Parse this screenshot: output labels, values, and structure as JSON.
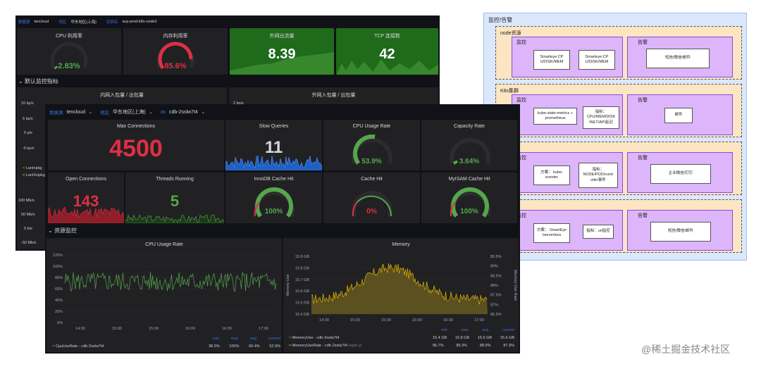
{
  "back_dash": {
    "vars": [
      {
        "label": "数据源",
        "value": "tencloud"
      },
      {
        "label": "地区",
        "value": "华东地区(上海)"
      },
      {
        "label": "实例名",
        "value": "acp-prod-k8s-node2"
      }
    ],
    "panels": {
      "cpu": {
        "title": "CPU 利用率",
        "value": "2.83%",
        "level": 0.0283
      },
      "mem": {
        "title": "内存利用率",
        "value": "85.6%",
        "level": 0.856
      },
      "net": {
        "title": "外网出流量",
        "value": "8.39"
      },
      "tcp": {
        "title": "TCP 连接数",
        "value": "42"
      }
    },
    "row_title": "默认监控指标",
    "inner_title": "内网入包量 / 出包量",
    "outer_title": "外网入包量 / 出包量",
    "y_labels": [
      "10 kp/s",
      "5 kp/s",
      "0 p/s",
      "-5 kp/s"
    ],
    "y_right": "2 kp/s",
    "legend": [
      "LanInpkg",
      "LanOutpkg"
    ],
    "y_labels2": [
      "100 Mb/s",
      "50 Mb/s",
      "0 b/s",
      "-50 Mb/s",
      "-50 Mb/s"
    ]
  },
  "front_dash": {
    "vars": [
      {
        "label": "数据源",
        "value": "tencloud"
      },
      {
        "label": "地区",
        "value": "华东地区(上海)"
      },
      {
        "label": "db",
        "value": "cdb-2sslw7t4"
      }
    ],
    "stats": {
      "max_conn": {
        "title": "Max Connections",
        "value": "4500"
      },
      "slow": {
        "title": "Slow Queries",
        "value": "11"
      },
      "cpu": {
        "title": "CPU Usage Rate",
        "value": "53.9%",
        "level": 0.539
      },
      "cap": {
        "title": "Capacity Rate",
        "value": "3.64%",
        "level": 0.0364
      },
      "open": {
        "title": "Open Connections",
        "value": "143"
      },
      "threads": {
        "title": "Threads Running",
        "value": "5"
      },
      "innodb": {
        "title": "InnoDB Cache Hit",
        "value": "100%",
        "level": 1
      },
      "cache": {
        "title": "Cache Hit",
        "value": "0%",
        "level": 0
      },
      "myisam": {
        "title": "MyISAM Cache Hit",
        "value": "100%",
        "level": 1
      }
    },
    "row_title": "资源监控",
    "cpu_chart": {
      "title": "CPU Usage Rate",
      "ylabels": [
        "120%",
        "100%",
        "80%",
        "60%",
        "40%",
        "20%",
        "0%"
      ],
      "xlabels": [
        "14:30",
        "15:00",
        "15:30",
        "16:00",
        "16:30",
        "17:00"
      ],
      "stat_headers": [
        "min",
        "max",
        "avg",
        "current"
      ],
      "legend": {
        "name": "CpuUseRate - cdb-2sslw7t4",
        "stats": [
          "38.3%",
          "100%",
          "60.4%",
          "52.9%"
        ]
      }
    },
    "mem_chart": {
      "title": "Memory",
      "ylabels": [
        "15.9 GB",
        "15.8 GB",
        "15.7 GB",
        "15.6 GB",
        "15.5 GB",
        "15.4 GB"
      ],
      "ylabels_right": [
        "89.5%",
        "89%",
        "88.5%",
        "88%",
        "87.5%",
        "87%",
        "86.5%"
      ],
      "ylabel": "Memory Use",
      "ylabel_right": "Memory Use Rate",
      "xlabels": [
        "14:30",
        "15:00",
        "15:30",
        "16:00",
        "16:30",
        "17:00"
      ],
      "stat_headers": [
        "min",
        "max",
        "avg",
        "current"
      ],
      "legend": [
        {
          "name": "MemoryUse - cdb-2sslw7t4",
          "stats": [
            "15.4 GB",
            "15.8 GB",
            "15.6 GB",
            "15.6 GB"
          ]
        },
        {
          "name": "MemoryUseRate - cdb-2sslw7t4",
          "suffix": "(right y)",
          "stats": [
            "86.7%",
            "89.3%",
            "88.0%",
            "87.9%"
          ]
        }
      ]
    }
  },
  "diagram": {
    "title": "监控/告警",
    "groups": [
      {
        "name": "node资源",
        "mon": "监控",
        "alert": "告警",
        "items": [
          "Smarteye:CP U/DISK/MEM",
          "Smarteye:CP U/DISK/MEM"
        ],
        "alert_item": "短信/微信/邮件"
      },
      {
        "name": "K8s集群",
        "mon": "监控",
        "alert": "告警",
        "items": [
          "kube-state-metrics + prometheus",
          "指标： CPU/MEM/DISK /NET/API延迟"
        ],
        "alert_item": "邮件"
      },
      {
        "name": "",
        "mon": "监控",
        "alert": "告警",
        "items": [
          "方案： kube-eventer",
          "指标： NODE/POD/contr oller事件"
        ],
        "alert_item": "企业微信/钉钉"
      },
      {
        "name": "",
        "mon": "监控",
        "alert": "告警",
        "items": [
          "方案： SmartEye /serverless",
          "指标：url监控"
        ],
        "alert_item": "短信/微信/邮件"
      }
    ]
  },
  "watermark": "@稀土掘金技术社区",
  "colors": {
    "green": "#56a64b",
    "red": "#e02f44",
    "orange": "#ff780a",
    "yellow": "#e0b400",
    "blue": "#3871dc",
    "panel": "#212124",
    "bg": "#111217"
  }
}
